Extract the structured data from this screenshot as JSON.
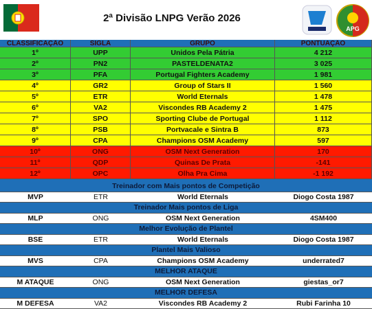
{
  "header": {
    "title": "2ª Divisão LNPG Verão 2026",
    "logo_text": "APG"
  },
  "table": {
    "columns": [
      "CLASSIFICAÇÃO",
      "SIGLA",
      "GRUPO",
      "PONTUAÇÃO"
    ],
    "rows": [
      [
        "1º",
        "UPP",
        "Unidos Pela Pátria",
        "4 212"
      ],
      [
        "2º",
        "PN2",
        "PASTELDENATA2",
        "3 025"
      ],
      [
        "3º",
        "PFA",
        "Portugal Fighters Academy",
        "1 981"
      ],
      [
        "4º",
        "GR2",
        "Group of Stars II",
        "1 560"
      ],
      [
        "5º",
        "ETR",
        "World Eternals",
        "1 478"
      ],
      [
        "6º",
        "VA2",
        "Viscondes RB Academy 2",
        "1 475"
      ],
      [
        "7º",
        "SPO",
        "Sporting Clube de Portugal",
        "1 112"
      ],
      [
        "8º",
        "PSB",
        "Portvacale e Sintra B",
        "873"
      ],
      [
        "9º",
        "CPA",
        "Champions OSM Academy",
        "597"
      ],
      [
        "10º",
        "ONG",
        "OSM Next Generation",
        "170"
      ],
      [
        "11º",
        "QDP",
        "Quinas De Prata",
        "-141"
      ],
      [
        "12º",
        "OPC",
        "Olha Pra Cima",
        "-1 192"
      ]
    ]
  },
  "awards": [
    {
      "title": "Treinador com Mais pontos de Competição",
      "code": "MVP",
      "sigla": "ETR",
      "group": "World Eternals",
      "winner": "Diogo Costa 1987"
    },
    {
      "title": "Treinador Mais pontos de Liga",
      "code": "MLP",
      "sigla": "ONG",
      "group": "OSM Next Generation",
      "winner": "4SM400"
    },
    {
      "title": "Melhor Evolução de Plantel",
      "code": "BSE",
      "sigla": "ETR",
      "group": "World Eternals",
      "winner": "Diogo Costa 1987"
    },
    {
      "title": "Plantel Mais Valioso",
      "code": "MVS",
      "sigla": "CPA",
      "group": "Champions OSM Academy",
      "winner": "underrated7"
    },
    {
      "title": "MELHOR ATAQUE",
      "code": "M ATAQUE",
      "sigla": "ONG",
      "group": "OSM Next Generation",
      "winner": "giestas_or7"
    },
    {
      "title": "MELHOR DEFESA",
      "code": "M DEFESA",
      "sigla": "VA2",
      "group": "Viscondes RB Academy 2",
      "winner": "Rubi Farinha 10"
    }
  ]
}
